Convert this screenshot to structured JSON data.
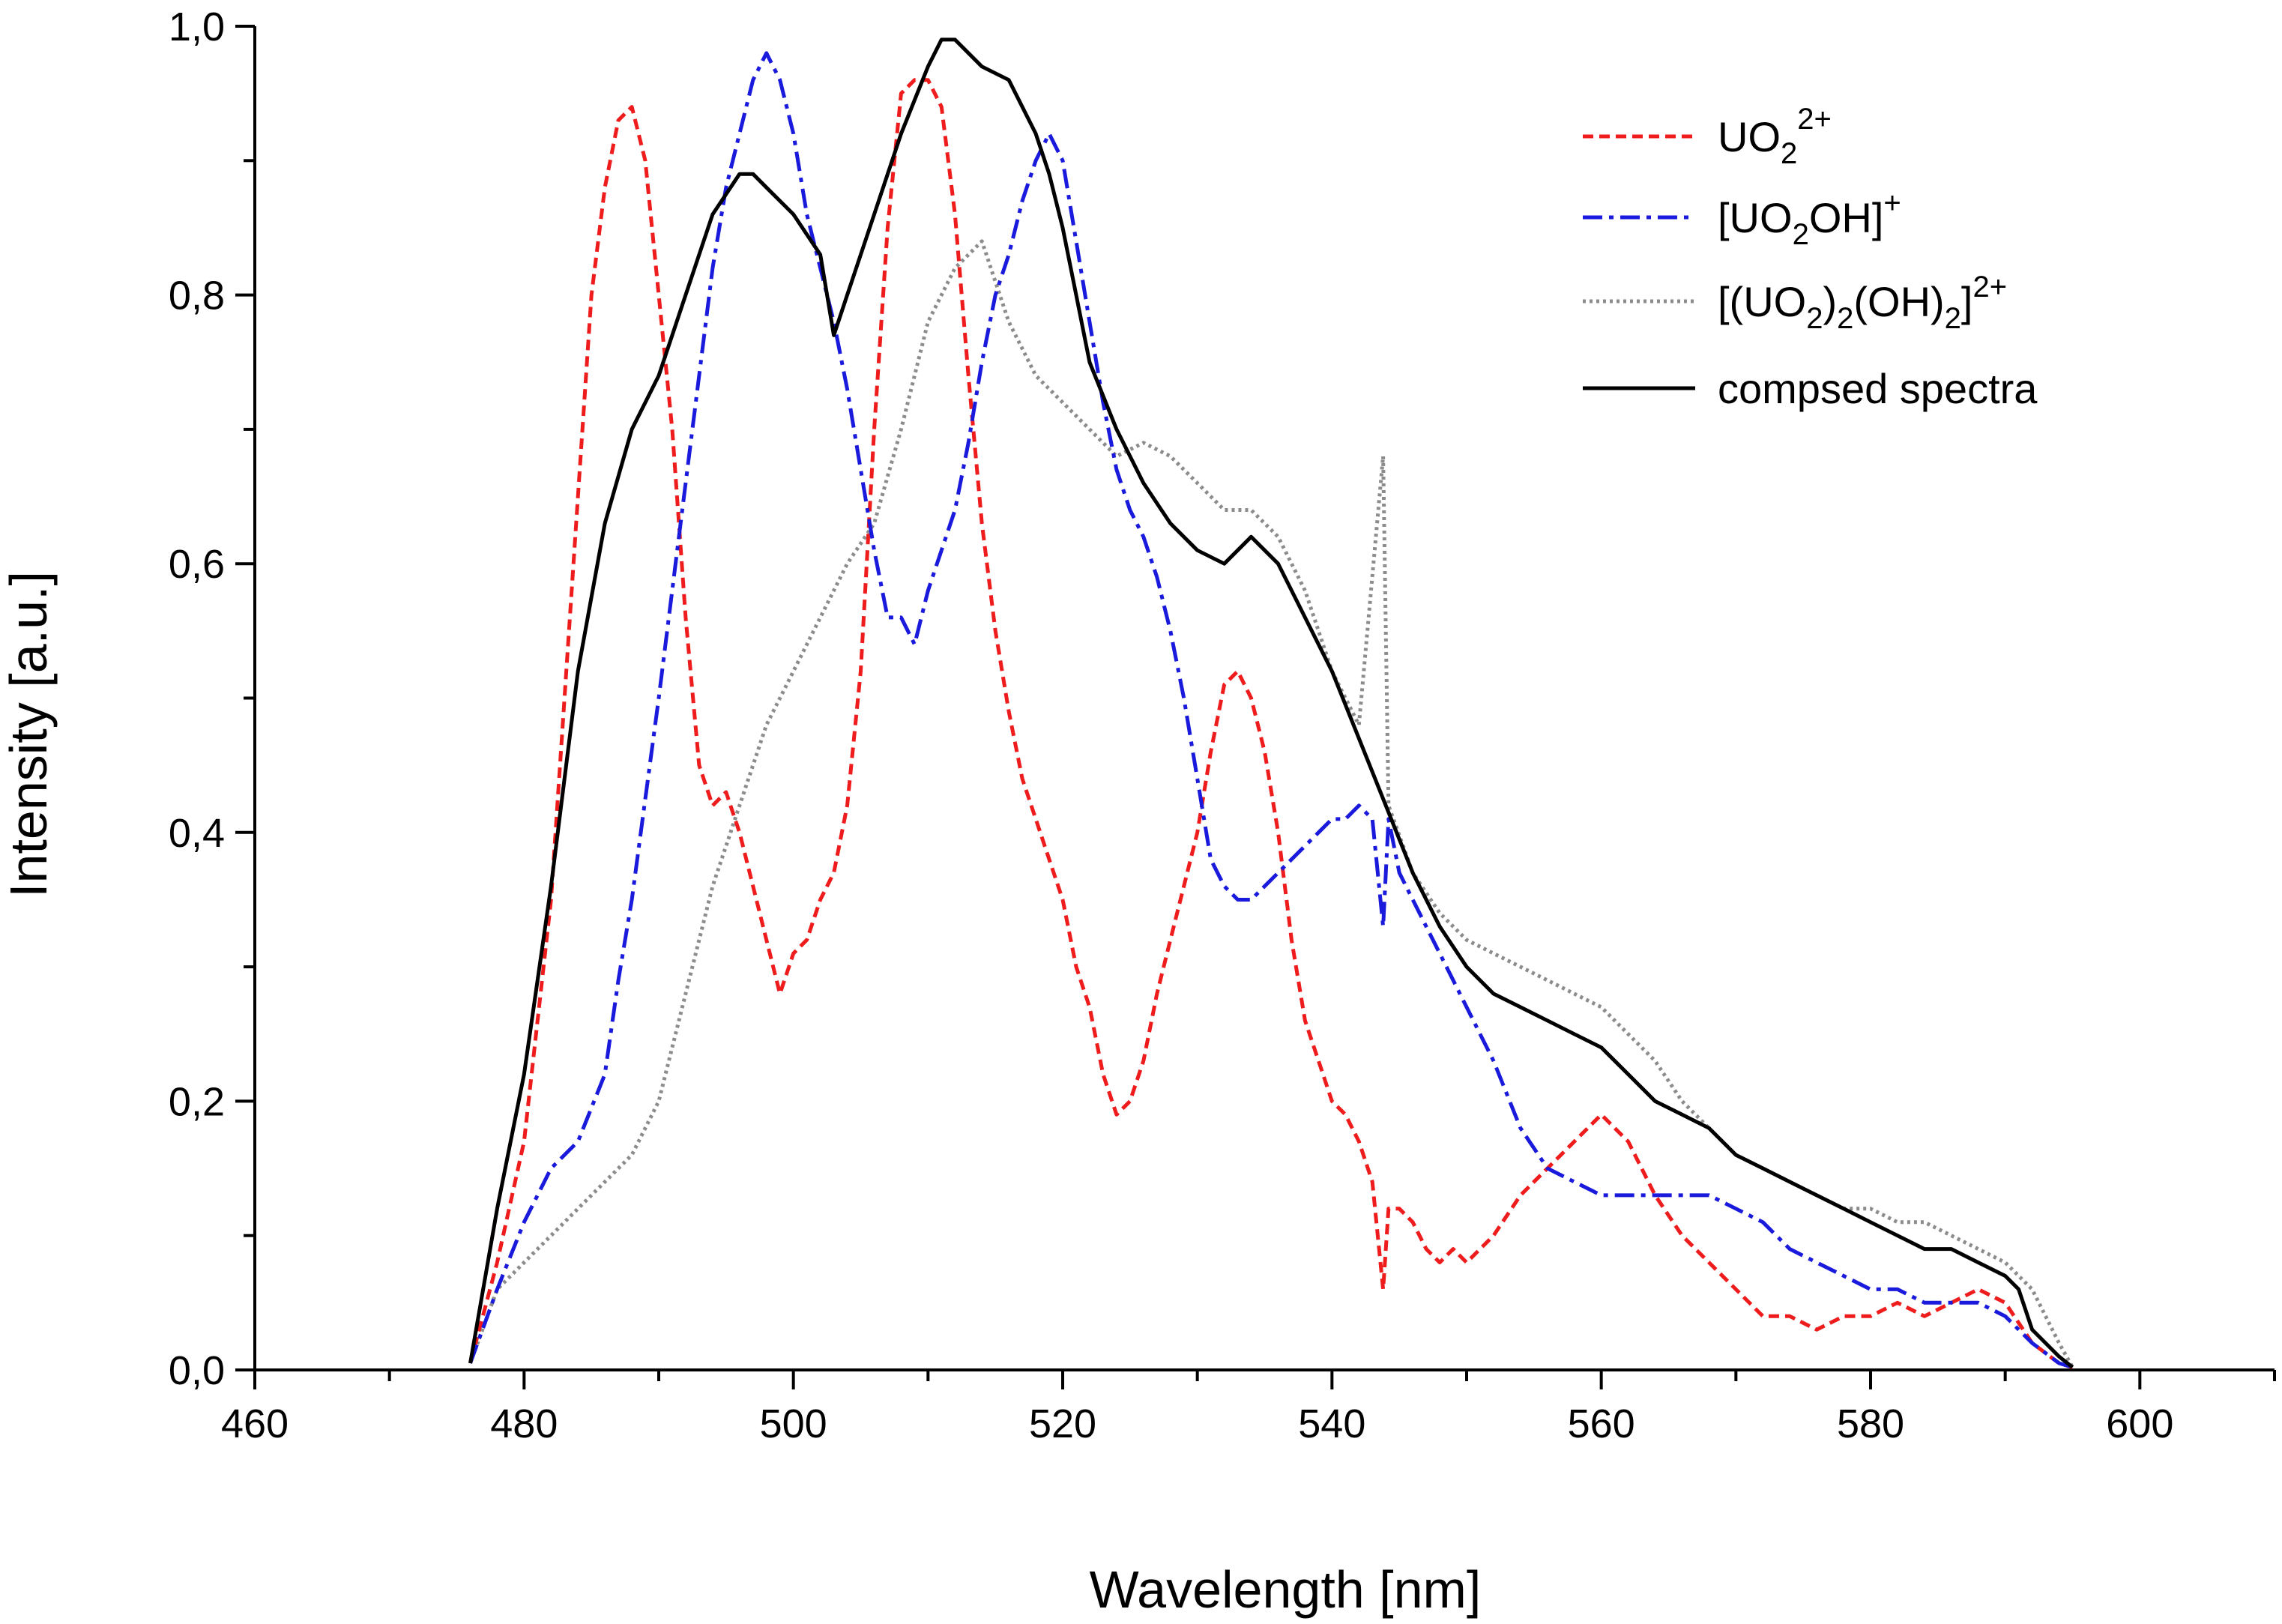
{
  "chart_data": {
    "type": "line",
    "title": "",
    "xlabel": "Wavelength [nm]",
    "ylabel": "Intensity [a.u.]",
    "xlim": [
      460,
      610
    ],
    "ylim": [
      0.0,
      1.0
    ],
    "grid": false,
    "x_ticks": [
      460,
      480,
      500,
      520,
      540,
      560,
      580,
      600
    ],
    "y_ticks": [
      0.0,
      0.2,
      0.4,
      0.6,
      0.8,
      1.0
    ],
    "x_tick_labels": [
      "460",
      "480",
      "500",
      "520",
      "540",
      "560",
      "580",
      "600"
    ],
    "y_tick_labels": [
      "0,0",
      "0,2",
      "0,4",
      "0,6",
      "0,8",
      "1,0"
    ],
    "legend_position": "top-right",
    "series": [
      {
        "name": "UO2 2+",
        "legend": {
          "main": "UO",
          "sub": "2",
          "sup": "2+",
          "tail": ""
        },
        "color": "#ee1c1c",
        "dash": "14,8",
        "x": [
          476,
          478,
          480,
          482,
          484,
          485,
          486,
          487,
          488,
          489,
          490,
          491,
          492,
          493,
          494,
          495,
          496,
          497,
          498,
          499,
          500,
          501,
          502,
          503,
          504,
          505,
          506,
          507,
          508,
          509,
          510,
          511,
          512,
          513,
          514,
          515,
          516,
          517,
          518,
          519,
          520,
          521,
          522,
          523,
          524,
          525,
          526,
          527,
          528,
          529,
          530,
          531,
          532,
          533,
          534,
          535,
          536,
          537,
          538,
          539,
          540,
          541,
          542,
          543,
          543.8,
          544.2,
          545,
          546,
          547,
          548,
          549,
          550,
          552,
          554,
          556,
          558,
          560,
          562,
          564,
          566,
          568,
          570,
          572,
          574,
          576,
          578,
          580,
          582,
          584,
          586,
          588,
          590,
          592,
          594,
          595
        ],
        "values": [
          0.005,
          0.08,
          0.17,
          0.35,
          0.65,
          0.8,
          0.88,
          0.93,
          0.94,
          0.9,
          0.8,
          0.7,
          0.56,
          0.45,
          0.42,
          0.43,
          0.4,
          0.36,
          0.32,
          0.28,
          0.31,
          0.32,
          0.35,
          0.37,
          0.42,
          0.52,
          0.7,
          0.85,
          0.95,
          0.96,
          0.96,
          0.94,
          0.86,
          0.74,
          0.63,
          0.55,
          0.49,
          0.44,
          0.41,
          0.38,
          0.35,
          0.3,
          0.27,
          0.22,
          0.19,
          0.2,
          0.23,
          0.28,
          0.32,
          0.36,
          0.4,
          0.46,
          0.51,
          0.52,
          0.5,
          0.46,
          0.4,
          0.32,
          0.26,
          0.23,
          0.2,
          0.19,
          0.17,
          0.14,
          0.06,
          0.12,
          0.12,
          0.11,
          0.09,
          0.08,
          0.09,
          0.08,
          0.1,
          0.13,
          0.15,
          0.17,
          0.19,
          0.17,
          0.13,
          0.1,
          0.08,
          0.06,
          0.04,
          0.04,
          0.03,
          0.04,
          0.04,
          0.05,
          0.04,
          0.05,
          0.06,
          0.05,
          0.02,
          0.005,
          0.002
        ]
      },
      {
        "name": "[UO2OH]+",
        "legend": {
          "main": "[UO",
          "sub": "2",
          "mid": "OH]",
          "sup": "+"
        },
        "color": "#1a1adc",
        "dash": "26,9,6,9",
        "x": [
          476,
          478,
          480,
          482,
          484,
          486,
          487,
          488,
          490,
          492,
          494,
          495,
          496,
          497,
          498,
          499,
          500,
          501,
          502,
          503,
          504,
          505,
          506,
          507,
          508,
          509,
          510,
          511,
          512,
          513,
          514,
          515,
          516,
          517,
          518,
          519,
          520,
          521,
          522,
          523,
          524,
          525,
          526,
          527,
          528,
          529,
          530,
          531,
          532,
          533,
          534,
          535,
          536,
          537,
          538,
          539,
          540,
          541,
          542,
          543,
          543.8,
          544.2,
          545,
          546,
          548,
          550,
          552,
          554,
          556,
          558,
          560,
          562,
          564,
          566,
          568,
          570,
          572,
          574,
          576,
          578,
          580,
          582,
          584,
          586,
          588,
          590,
          592,
          594,
          595
        ],
        "values": [
          0.005,
          0.06,
          0.11,
          0.15,
          0.17,
          0.22,
          0.29,
          0.35,
          0.5,
          0.66,
          0.82,
          0.88,
          0.92,
          0.96,
          0.98,
          0.96,
          0.92,
          0.86,
          0.82,
          0.78,
          0.73,
          0.67,
          0.61,
          0.56,
          0.56,
          0.54,
          0.58,
          0.61,
          0.64,
          0.69,
          0.75,
          0.8,
          0.83,
          0.87,
          0.9,
          0.92,
          0.9,
          0.84,
          0.78,
          0.72,
          0.67,
          0.64,
          0.62,
          0.59,
          0.55,
          0.5,
          0.44,
          0.38,
          0.36,
          0.35,
          0.35,
          0.36,
          0.37,
          0.38,
          0.39,
          0.4,
          0.41,
          0.41,
          0.42,
          0.41,
          0.33,
          0.41,
          0.37,
          0.35,
          0.31,
          0.27,
          0.23,
          0.18,
          0.15,
          0.14,
          0.13,
          0.13,
          0.13,
          0.13,
          0.13,
          0.12,
          0.11,
          0.09,
          0.08,
          0.07,
          0.06,
          0.06,
          0.05,
          0.05,
          0.05,
          0.04,
          0.02,
          0.005,
          0.002
        ]
      },
      {
        "name": "[(UO2)2(OH)2]2+",
        "legend": {
          "text": "[(UO2)2(OH)2]2+"
        },
        "color": "#8c8c8c",
        "dash": "4,5",
        "x": [
          476,
          478,
          480,
          482,
          484,
          486,
          488,
          490,
          492,
          494,
          496,
          498,
          500,
          502,
          504,
          506,
          508,
          510,
          512,
          514,
          516,
          518,
          520,
          522,
          524,
          526,
          528,
          530,
          532,
          534,
          536,
          538,
          540,
          542,
          543.8,
          544.2,
          546,
          548,
          550,
          552,
          554,
          556,
          558,
          560,
          562,
          564,
          566,
          568,
          570,
          572,
          574,
          576,
          578,
          580,
          582,
          584,
          586,
          588,
          590,
          592,
          594,
          595
        ],
        "values": [
          0.005,
          0.06,
          0.08,
          0.1,
          0.12,
          0.14,
          0.16,
          0.2,
          0.28,
          0.36,
          0.42,
          0.48,
          0.52,
          0.56,
          0.6,
          0.63,
          0.7,
          0.78,
          0.82,
          0.84,
          0.78,
          0.74,
          0.72,
          0.7,
          0.68,
          0.69,
          0.68,
          0.66,
          0.64,
          0.64,
          0.62,
          0.58,
          0.52,
          0.48,
          0.68,
          0.42,
          0.37,
          0.34,
          0.32,
          0.31,
          0.3,
          0.29,
          0.28,
          0.27,
          0.25,
          0.23,
          0.2,
          0.18,
          0.16,
          0.15,
          0.14,
          0.13,
          0.12,
          0.12,
          0.11,
          0.11,
          0.1,
          0.09,
          0.08,
          0.06,
          0.02,
          0.002
        ]
      },
      {
        "name": "compsed spectra",
        "legend": {
          "text": "compsed spectra"
        },
        "color": "#000000",
        "dash": "",
        "x": [
          476,
          478,
          480,
          482,
          484,
          486,
          488,
          490,
          492,
          494,
          496,
          497,
          498,
          500,
          502,
          503,
          504,
          506,
          508,
          510,
          511,
          512,
          514,
          516,
          518,
          519,
          520,
          521,
          522,
          524,
          526,
          528,
          530,
          532,
          534,
          536,
          538,
          540,
          542,
          544,
          546,
          548,
          550,
          552,
          554,
          556,
          558,
          560,
          562,
          564,
          566,
          568,
          570,
          572,
          574,
          576,
          578,
          580,
          582,
          584,
          586,
          588,
          590,
          591,
          592,
          594,
          595
        ],
        "values": [
          0.005,
          0.12,
          0.22,
          0.36,
          0.52,
          0.63,
          0.7,
          0.74,
          0.8,
          0.86,
          0.89,
          0.89,
          0.88,
          0.86,
          0.83,
          0.77,
          0.8,
          0.86,
          0.92,
          0.97,
          0.99,
          0.99,
          0.97,
          0.96,
          0.92,
          0.89,
          0.85,
          0.8,
          0.75,
          0.7,
          0.66,
          0.63,
          0.61,
          0.6,
          0.62,
          0.6,
          0.56,
          0.52,
          0.47,
          0.42,
          0.37,
          0.33,
          0.3,
          0.28,
          0.27,
          0.26,
          0.25,
          0.24,
          0.22,
          0.2,
          0.19,
          0.18,
          0.16,
          0.15,
          0.14,
          0.13,
          0.12,
          0.11,
          0.1,
          0.09,
          0.09,
          0.08,
          0.07,
          0.06,
          0.03,
          0.01,
          0.002
        ]
      }
    ]
  }
}
